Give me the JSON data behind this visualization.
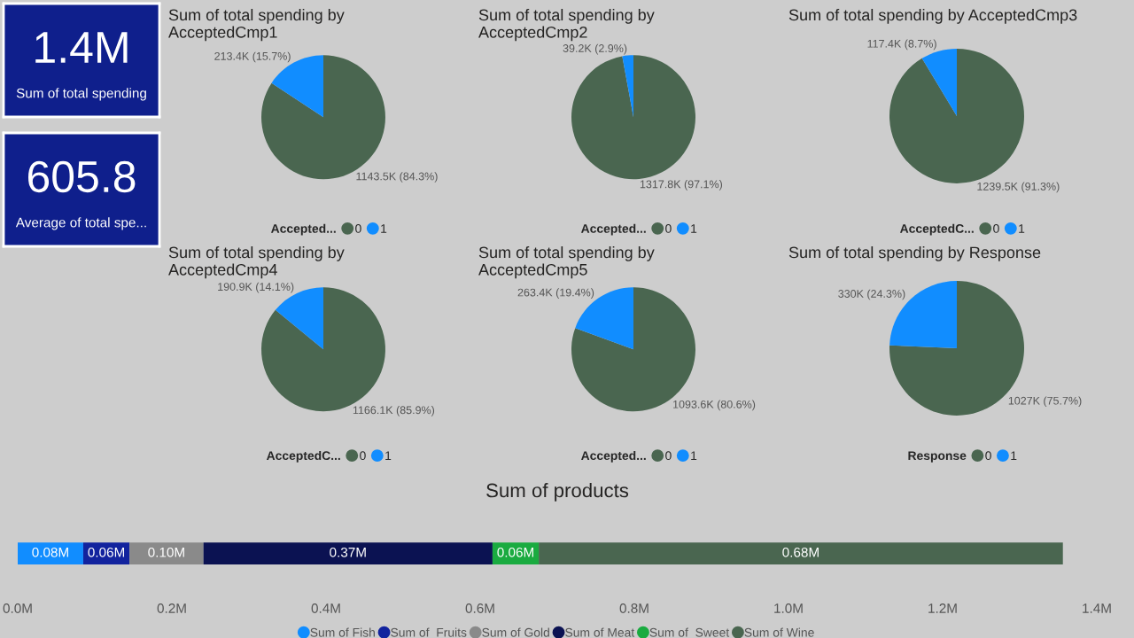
{
  "chart_data": [
    {
      "type": "other",
      "color": "#0f1f8c",
      "annotations": [
        "1.4M",
        "Sum of total spending"
      ]
    },
    {
      "type": "other",
      "color": "#0f1f8c",
      "annotations": [
        "605.8",
        "Average of total spe..."
      ]
    },
    {
      "type": "pie",
      "title": "Sum of total spending by AcceptedCmp1",
      "legend_title": "Accepted...",
      "legend": "bottom",
      "categories": [
        "0",
        "1"
      ],
      "values": [
        1143500,
        213400
      ],
      "colors": [
        "#4a6650",
        "#118dff"
      ],
      "value_labels": [
        "1143.5K (84.3%)",
        "213.4K (15.7%)"
      ]
    },
    {
      "type": "pie",
      "title": "Sum of total spending by AcceptedCmp2",
      "legend_title": "Accepted...",
      "legend": "bottom",
      "categories": [
        "0",
        "1"
      ],
      "values": [
        1317800,
        39200
      ],
      "colors": [
        "#4a6650",
        "#118dff"
      ],
      "value_labels": [
        "1317.8K (97.1%)",
        "39.2K (2.9%)"
      ]
    },
    {
      "type": "pie",
      "title": "Sum of total spending by AcceptedCmp3",
      "legend_title": "AcceptedC...",
      "legend": "bottom",
      "categories": [
        "0",
        "1"
      ],
      "values": [
        1239500,
        117400
      ],
      "colors": [
        "#4a6650",
        "#118dff"
      ],
      "value_labels": [
        "1239.5K (91.3%)",
        "117.4K (8.7%)"
      ]
    },
    {
      "type": "pie",
      "title": "Sum of total spending by AcceptedCmp4",
      "legend_title": "AcceptedC...",
      "legend": "bottom",
      "categories": [
        "0",
        "1"
      ],
      "values": [
        1166100,
        190900
      ],
      "colors": [
        "#4a6650",
        "#118dff"
      ],
      "value_labels": [
        "1166.1K (85.9%)",
        "190.9K (14.1%)"
      ]
    },
    {
      "type": "pie",
      "title": "Sum of total spending by AcceptedCmp5",
      "legend_title": "Accepted...",
      "legend": "bottom",
      "categories": [
        "0",
        "1"
      ],
      "values": [
        1093600,
        263400
      ],
      "colors": [
        "#4a6650",
        "#118dff"
      ],
      "value_labels": [
        "1093.6K (80.6%)",
        "263.4K (19.4%)"
      ]
    },
    {
      "type": "pie",
      "title": "Sum of total spending by Response",
      "legend_title": "Response",
      "legend": "bottom",
      "categories": [
        "0",
        "1"
      ],
      "values": [
        1027000,
        330000
      ],
      "colors": [
        "#4a6650",
        "#118dff"
      ],
      "value_labels": [
        "1027K (75.7%)",
        "330K (24.3%)"
      ]
    },
    {
      "type": "bar",
      "title": "Sum of products",
      "orientation": "horizontal",
      "stacked": true,
      "legend": "bottom",
      "tick_labels": "x",
      "categories": [
        null
      ],
      "xlim": [
        0,
        1.4
      ],
      "xticks": [
        {
          "value": 0,
          "label": "0.0M"
        },
        {
          "value": 0.2,
          "label": "0.2M"
        },
        {
          "value": 0.4,
          "label": "0.4M"
        },
        {
          "value": 0.6,
          "label": "0.6M"
        },
        {
          "value": 0.8,
          "label": "0.8M"
        },
        {
          "value": 1.0,
          "label": "1.0M"
        },
        {
          "value": 1.2,
          "label": "1.2M"
        },
        {
          "value": 1.4,
          "label": "1.4M"
        }
      ],
      "series": [
        {
          "name": "Sum of Fish",
          "color": "#118dff",
          "values": [
            0.085
          ],
          "value_labels": [
            "0.08M"
          ]
        },
        {
          "name": "Sum of  Fruits",
          "color": "#12239e",
          "values": [
            0.06
          ],
          "value_labels": [
            "0.06M"
          ]
        },
        {
          "name": "Sum of Gold",
          "color": "#8a8a8a",
          "values": [
            0.096
          ],
          "value_labels": [
            "0.10M"
          ]
        },
        {
          "name": "Sum of Meat",
          "color": "#0b1252",
          "values": [
            0.375
          ],
          "value_labels": [
            "0.37M"
          ]
        },
        {
          "name": "Sum of  Sweet",
          "color": "#1aab40",
          "values": [
            0.06
          ],
          "value_labels": [
            "0.06M"
          ]
        },
        {
          "name": "Sum of Wine",
          "color": "#4a6650",
          "values": [
            0.68
          ],
          "value_labels": [
            "0.68M"
          ]
        }
      ]
    }
  ]
}
